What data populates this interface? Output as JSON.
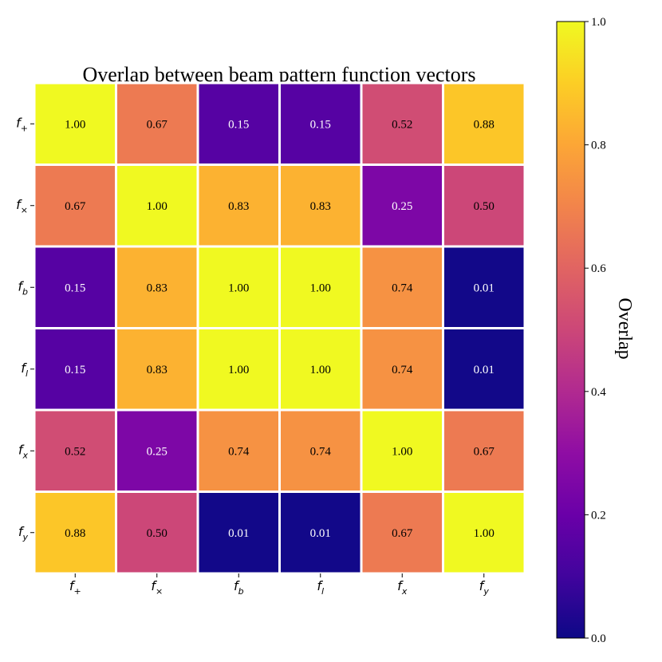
{
  "chart_data": {
    "type": "heatmap",
    "title": "Overlap between beam pattern function vectors",
    "row_labels": [
      {
        "base": "f",
        "sub": "+"
      },
      {
        "base": "f",
        "sub": "×"
      },
      {
        "base": "f",
        "sub": "b"
      },
      {
        "base": "f",
        "sub": "l"
      },
      {
        "base": "f",
        "sub": "x"
      },
      {
        "base": "f",
        "sub": "y"
      }
    ],
    "col_labels": [
      {
        "base": "f",
        "sub": "+"
      },
      {
        "base": "f",
        "sub": "×"
      },
      {
        "base": "f",
        "sub": "b"
      },
      {
        "base": "f",
        "sub": "l"
      },
      {
        "base": "f",
        "sub": "x"
      },
      {
        "base": "f",
        "sub": "y"
      }
    ],
    "values": [
      [
        1.0,
        0.67,
        0.15,
        0.15,
        0.52,
        0.88
      ],
      [
        0.67,
        1.0,
        0.83,
        0.83,
        0.25,
        0.5
      ],
      [
        0.15,
        0.83,
        1.0,
        1.0,
        0.74,
        0.01
      ],
      [
        0.15,
        0.83,
        1.0,
        1.0,
        0.74,
        0.01
      ],
      [
        0.52,
        0.25,
        0.74,
        0.74,
        1.0,
        0.67
      ],
      [
        0.88,
        0.5,
        0.01,
        0.01,
        0.67,
        1.0
      ]
    ],
    "value_format": "0.00",
    "colormap": "plasma",
    "colorbar": {
      "label": "Overlap",
      "range": [
        0.0,
        1.0
      ],
      "ticks": [
        "0.0",
        "0.2",
        "0.4",
        "0.6",
        "0.8",
        "1.0"
      ]
    },
    "grid_line_color": "#ffffff",
    "annotation_colors": {
      "dark_cells": "#ffffff",
      "light_cells": "#000000"
    }
  }
}
